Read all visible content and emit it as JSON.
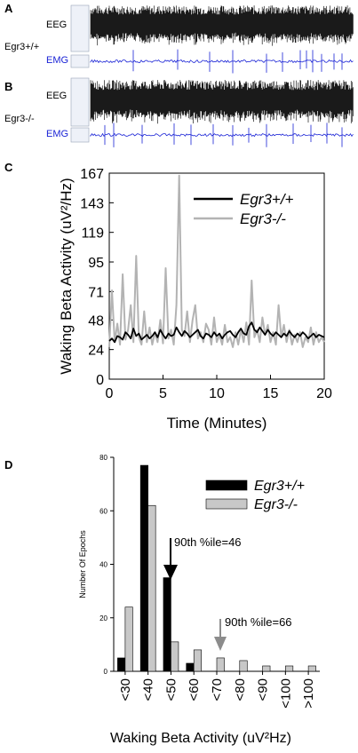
{
  "panels": {
    "A": {
      "letter": "A",
      "eeg_label": "EEG",
      "genotype_label": "Egr3+/+",
      "emg_label": "EMG"
    },
    "B": {
      "letter": "B",
      "eeg_label": "EEG",
      "genotype_label": "Egr3-/-",
      "emg_label": "EMG"
    },
    "C": {
      "letter": "C"
    },
    "D": {
      "letter": "D"
    }
  },
  "colors": {
    "eeg": "#1a1a1a",
    "emg": "#1a23d6",
    "wt": "#000000",
    "ko": "#b3b3b3",
    "ko_bar": "#c8c8c8",
    "arrow_gray": "#8c8c8c"
  },
  "chart_data": [
    {
      "type": "line",
      "panel": "C",
      "xlabel": "Time (Minutes)",
      "ylabel": "Waking Beta Activity (uV²/Hz)",
      "xlim": [
        0,
        20
      ],
      "ylim": [
        0,
        167
      ],
      "xticks": [
        0,
        5,
        10,
        15,
        20
      ],
      "yticks": [
        0,
        24,
        48,
        71,
        95,
        119,
        143,
        167
      ],
      "legend_position": "top-right",
      "series": [
        {
          "name": "Egr3+/+",
          "color": "#000000",
          "x": [
            0,
            0.25,
            0.5,
            0.75,
            1,
            1.25,
            1.5,
            1.75,
            2,
            2.25,
            2.5,
            2.75,
            3,
            3.25,
            3.5,
            3.75,
            4,
            4.25,
            4.5,
            4.75,
            5,
            5.25,
            5.5,
            5.75,
            6,
            6.25,
            6.5,
            6.75,
            7,
            7.25,
            7.5,
            7.75,
            8,
            8.25,
            8.5,
            8.75,
            9,
            9.25,
            9.5,
            9.75,
            10,
            10.25,
            10.5,
            10.75,
            11,
            11.25,
            11.5,
            11.75,
            12,
            12.25,
            12.5,
            12.75,
            13,
            13.25,
            13.5,
            13.75,
            14,
            14.25,
            14.5,
            14.75,
            15,
            15.25,
            15.5,
            15.75,
            16,
            16.25,
            16.5,
            16.75,
            17,
            17.25,
            17.5,
            17.75,
            18,
            18.25,
            18.5,
            18.75,
            19,
            19.25,
            19.5,
            19.75,
            20
          ],
          "y": [
            31,
            33,
            30,
            35,
            34,
            32,
            38,
            36,
            33,
            41,
            35,
            37,
            32,
            34,
            36,
            33,
            35,
            38,
            34,
            40,
            36,
            33,
            37,
            35,
            36,
            42,
            38,
            35,
            39,
            37,
            34,
            36,
            38,
            40,
            35,
            33,
            37,
            36,
            34,
            38,
            35,
            37,
            33,
            36,
            38,
            39,
            36,
            34,
            38,
            41,
            37,
            36,
            43,
            46,
            40,
            38,
            42,
            39,
            36,
            40,
            37,
            35,
            38,
            36,
            34,
            37,
            35,
            39,
            36,
            34,
            37,
            35,
            38,
            36,
            33,
            35,
            37,
            34,
            36,
            35,
            34
          ]
        },
        {
          "name": "Egr3-/-",
          "color": "#b3b3b3",
          "x": [
            0,
            0.25,
            0.5,
            0.75,
            1,
            1.25,
            1.5,
            1.75,
            2,
            2.25,
            2.5,
            2.75,
            3,
            3.25,
            3.5,
            3.75,
            4,
            4.25,
            4.5,
            4.75,
            5,
            5.25,
            5.5,
            5.75,
            6,
            6.25,
            6.5,
            6.75,
            7,
            7.25,
            7.5,
            7.75,
            8,
            8.25,
            8.5,
            8.75,
            9,
            9.25,
            9.5,
            9.75,
            10,
            10.25,
            10.5,
            10.75,
            11,
            11.25,
            11.5,
            11.75,
            12,
            12.25,
            12.5,
            12.75,
            13,
            13.25,
            13.5,
            13.75,
            14,
            14.25,
            14.5,
            14.75,
            15,
            15.25,
            15.5,
            15.75,
            16,
            16.25,
            16.5,
            16.75,
            17,
            17.25,
            17.5,
            17.75,
            18,
            18.25,
            18.5,
            18.75,
            19,
            19.25,
            19.5,
            19.75,
            20
          ],
          "y": [
            26,
            72,
            30,
            45,
            28,
            85,
            32,
            40,
            60,
            30,
            100,
            34,
            28,
            55,
            30,
            42,
            28,
            38,
            30,
            48,
            29,
            90,
            33,
            40,
            28,
            60,
            165,
            40,
            35,
            55,
            30,
            48,
            60,
            33,
            38,
            30,
            45,
            40,
            28,
            50,
            30,
            36,
            28,
            44,
            30,
            34,
            26,
            38,
            28,
            40,
            30,
            46,
            28,
            80,
            34,
            40,
            30,
            50,
            36,
            44,
            30,
            38,
            28,
            60,
            34,
            44,
            30,
            40,
            28,
            36,
            30,
            38,
            26,
            34,
            30,
            42,
            28,
            38,
            30,
            34,
            30
          ]
        }
      ]
    },
    {
      "type": "bar",
      "panel": "D",
      "xlabel": "Waking Beta Activity (uV²Hz)",
      "ylabel": "Number Of Epochs",
      "ylim": [
        0,
        80
      ],
      "yticks": [
        0,
        20,
        40,
        60,
        80
      ],
      "categories": [
        "<30",
        "<40",
        "<50",
        "<60",
        "<70",
        "<80",
        "<90",
        "<100",
        ">100"
      ],
      "legend_position": "top-right",
      "series": [
        {
          "name": "Egr3+/+",
          "color": "#000000",
          "values": [
            5,
            77,
            35,
            3,
            0,
            0,
            0,
            0,
            0
          ]
        },
        {
          "name": "Egr3-/-",
          "color": "#c8c8c8",
          "values": [
            24,
            62,
            11,
            8,
            5,
            4,
            2,
            2,
            2
          ]
        }
      ],
      "annotations": [
        {
          "text": "90th %ile=46",
          "series": "Egr3+/+"
        },
        {
          "text": "90th %ile=66",
          "series": "Egr3-/-"
        }
      ]
    }
  ]
}
